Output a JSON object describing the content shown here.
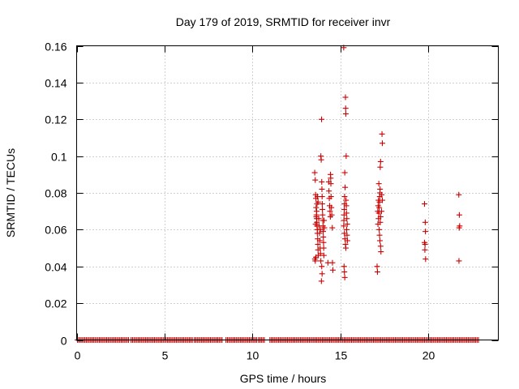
{
  "chart_data": {
    "type": "scatter",
    "title": "Day 179 of 2019, SRMTID for receiver invr",
    "xlabel": "GPS time / hours",
    "ylabel": "SRMTID / TECUs",
    "xlim": [
      0,
      24
    ],
    "ylim": [
      0,
      0.16
    ],
    "xticks": [
      0,
      5,
      10,
      15,
      20
    ],
    "yticks": [
      0,
      0.02,
      0.04,
      0.06,
      0.08,
      0.1,
      0.12,
      0.14,
      0.16
    ],
    "xtick_labels": [
      "0",
      "5",
      "10",
      "15",
      "20"
    ],
    "ytick_labels": [
      "0",
      "0.02",
      "0.04",
      "0.06",
      "0.08",
      "0.1",
      "0.12",
      "0.14",
      "0.16"
    ],
    "grid": true,
    "marker": "+",
    "color": "#cc0000",
    "series": [
      {
        "name": "SRMTID",
        "zero_segments": [
          [
            0.05,
            3.0
          ],
          [
            3.1,
            6.6
          ],
          [
            6.7,
            8.3
          ],
          [
            8.5,
            10.3
          ],
          [
            10.35,
            10.7
          ],
          [
            11.0,
            22.95
          ]
        ],
        "zero_step": 0.083,
        "points": [
          [
            13.55,
            0.091
          ],
          [
            13.58,
            0.087
          ],
          [
            13.6,
            0.079
          ],
          [
            13.62,
            0.077
          ],
          [
            13.63,
            0.072
          ],
          [
            13.65,
            0.068
          ],
          [
            13.66,
            0.066
          ],
          [
            13.67,
            0.064
          ],
          [
            13.68,
            0.062
          ],
          [
            13.7,
            0.06
          ],
          [
            13.7,
            0.058
          ],
          [
            13.72,
            0.055
          ],
          [
            13.73,
            0.052
          ],
          [
            13.74,
            0.049
          ],
          [
            13.75,
            0.046
          ],
          [
            13.56,
            0.044
          ],
          [
            13.58,
            0.043
          ],
          [
            13.62,
            0.045
          ],
          [
            13.6,
            0.063
          ],
          [
            13.64,
            0.067
          ],
          [
            13.66,
            0.07
          ],
          [
            13.68,
            0.074
          ],
          [
            13.71,
            0.078
          ],
          [
            13.74,
            0.075
          ],
          [
            13.78,
            0.066
          ],
          [
            13.8,
            0.062
          ],
          [
            13.82,
            0.058
          ],
          [
            13.84,
            0.054
          ],
          [
            13.86,
            0.05
          ],
          [
            13.88,
            0.047
          ],
          [
            13.9,
            0.1
          ],
          [
            13.92,
            0.098
          ],
          [
            13.94,
            0.12
          ],
          [
            13.95,
            0.086
          ],
          [
            13.96,
            0.082
          ],
          [
            13.97,
            0.078
          ],
          [
            13.98,
            0.074
          ],
          [
            13.99,
            0.071
          ],
          [
            14.0,
            0.068
          ],
          [
            14.01,
            0.065
          ],
          [
            14.02,
            0.062
          ],
          [
            14.03,
            0.059
          ],
          [
            14.04,
            0.056
          ],
          [
            14.05,
            0.053
          ],
          [
            14.06,
            0.05
          ],
          [
            14.07,
            0.046
          ],
          [
            13.9,
            0.043
          ],
          [
            13.95,
            0.04
          ],
          [
            13.97,
            0.036
          ],
          [
            13.93,
            0.032
          ],
          [
            13.88,
            0.06
          ],
          [
            14.08,
            0.065
          ],
          [
            14.1,
            0.061
          ],
          [
            14.3,
            0.042
          ],
          [
            14.35,
            0.086
          ],
          [
            14.36,
            0.081
          ],
          [
            14.38,
            0.077
          ],
          [
            14.4,
            0.073
          ],
          [
            14.42,
            0.07
          ],
          [
            14.44,
            0.067
          ],
          [
            14.45,
            0.09
          ],
          [
            14.46,
            0.088
          ],
          [
            14.47,
            0.085
          ],
          [
            14.48,
            0.078
          ],
          [
            14.5,
            0.072
          ],
          [
            14.52,
            0.068
          ],
          [
            14.55,
            0.061
          ],
          [
            14.56,
            0.042
          ],
          [
            14.58,
            0.038
          ],
          [
            15.2,
            0.159
          ],
          [
            15.3,
            0.132
          ],
          [
            15.31,
            0.126
          ],
          [
            15.32,
            0.123
          ],
          [
            15.34,
            0.1
          ],
          [
            15.26,
            0.091
          ],
          [
            15.28,
            0.083
          ],
          [
            15.25,
            0.078
          ],
          [
            15.24,
            0.074
          ],
          [
            15.23,
            0.071
          ],
          [
            15.22,
            0.068
          ],
          [
            15.21,
            0.065
          ],
          [
            15.2,
            0.062
          ],
          [
            15.24,
            0.058
          ],
          [
            15.27,
            0.055
          ],
          [
            15.3,
            0.052
          ],
          [
            15.32,
            0.05
          ],
          [
            15.22,
            0.04
          ],
          [
            15.24,
            0.037
          ],
          [
            15.26,
            0.034
          ],
          [
            15.33,
            0.076
          ],
          [
            15.35,
            0.073
          ],
          [
            15.36,
            0.069
          ],
          [
            15.38,
            0.066
          ],
          [
            15.4,
            0.063
          ],
          [
            15.37,
            0.06
          ],
          [
            15.39,
            0.057
          ],
          [
            15.41,
            0.054
          ],
          [
            17.1,
            0.04
          ],
          [
            17.12,
            0.037
          ],
          [
            17.15,
            0.063
          ],
          [
            17.18,
            0.066
          ],
          [
            17.2,
            0.069
          ],
          [
            17.22,
            0.072
          ],
          [
            17.24,
            0.075
          ],
          [
            17.25,
            0.078
          ],
          [
            17.26,
            0.08
          ],
          [
            17.27,
            0.082
          ],
          [
            17.28,
            0.094
          ],
          [
            17.3,
            0.097
          ],
          [
            17.2,
            0.085
          ],
          [
            17.18,
            0.076
          ],
          [
            17.16,
            0.073
          ],
          [
            17.14,
            0.07
          ],
          [
            17.22,
            0.06
          ],
          [
            17.24,
            0.057
          ],
          [
            17.26,
            0.054
          ],
          [
            17.3,
            0.051
          ],
          [
            17.32,
            0.048
          ],
          [
            17.28,
            0.064
          ],
          [
            17.3,
            0.067
          ],
          [
            17.35,
            0.07
          ],
          [
            17.38,
            0.112
          ],
          [
            17.4,
            0.107
          ],
          [
            17.36,
            0.079
          ],
          [
            17.4,
            0.076
          ],
          [
            19.8,
            0.074
          ],
          [
            19.84,
            0.064
          ],
          [
            19.85,
            0.059
          ],
          [
            19.8,
            0.053
          ],
          [
            19.83,
            0.052
          ],
          [
            19.82,
            0.049
          ],
          [
            19.86,
            0.044
          ],
          [
            21.75,
            0.079
          ],
          [
            21.78,
            0.068
          ],
          [
            21.8,
            0.062
          ],
          [
            21.77,
            0.061
          ],
          [
            21.76,
            0.043
          ]
        ]
      }
    ]
  }
}
